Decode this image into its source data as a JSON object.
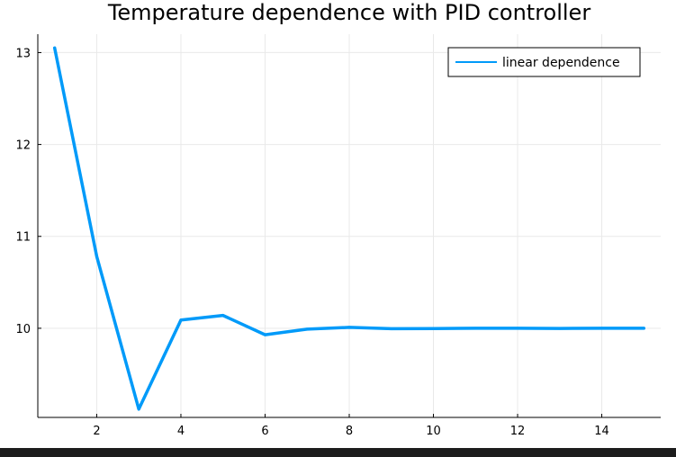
{
  "chart_data": {
    "type": "line",
    "title": "Temperature dependence with PID controller",
    "xlabel": "",
    "ylabel": "",
    "xlim": [
      0.6,
      15.4
    ],
    "ylim": [
      9.03,
      13.2
    ],
    "x_ticks": [
      2,
      4,
      6,
      8,
      10,
      12,
      14
    ],
    "y_ticks": [
      10,
      11,
      12,
      13
    ],
    "grid": true,
    "legend_position": "top-right",
    "series": [
      {
        "name": "linear dependence",
        "color": "#009af9",
        "x": [
          1,
          2,
          3,
          4,
          5,
          6,
          7,
          8,
          9,
          10,
          11,
          12,
          13,
          14,
          15
        ],
        "y": [
          13.05,
          10.78,
          9.12,
          10.09,
          10.14,
          9.93,
          9.99,
          10.01,
          9.995,
          9.997,
          10.0,
          10.0,
          9.998,
          10.0,
          10.0
        ]
      }
    ]
  }
}
